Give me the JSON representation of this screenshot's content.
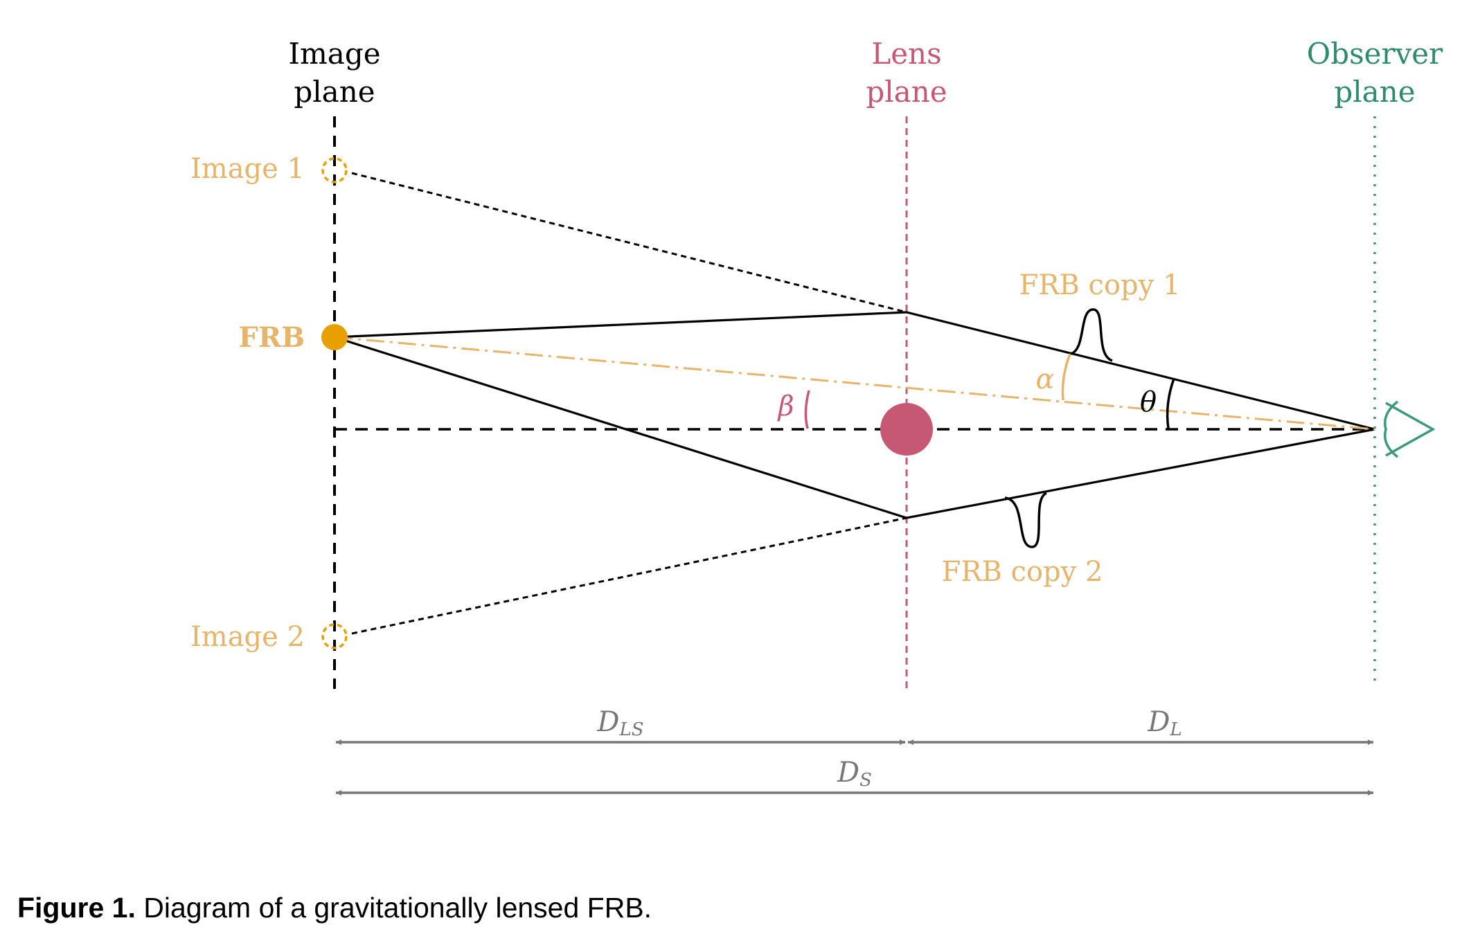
{
  "planes": {
    "image": {
      "line1": "Image",
      "line2": "plane",
      "color": "#000000"
    },
    "lens": {
      "line1": "Lens",
      "line2": "plane",
      "color": "#c75873"
    },
    "observer": {
      "line1": "Observer",
      "line2": "plane",
      "color": "#2e8b6e"
    }
  },
  "labels": {
    "image1": "Image 1",
    "image2": "Image 2",
    "frb": "FRB",
    "copy1": "FRB copy 1",
    "copy2": "FRB copy 2",
    "alpha": "α",
    "beta": "β",
    "theta": "θ"
  },
  "distances": {
    "dls": {
      "main": "D",
      "sub": "LS"
    },
    "dl": {
      "main": "D",
      "sub": "L"
    },
    "ds": {
      "main": "D",
      "sub": "S"
    }
  },
  "colors": {
    "frb": "#e8b46a",
    "frb_dot": "#e8a000",
    "lens": "#c75873",
    "observer": "#3a9a80",
    "arrow": "#777777"
  },
  "caption": {
    "label": "Figure 1.",
    "text": "Diagram of a gravitationally lensed FRB."
  }
}
